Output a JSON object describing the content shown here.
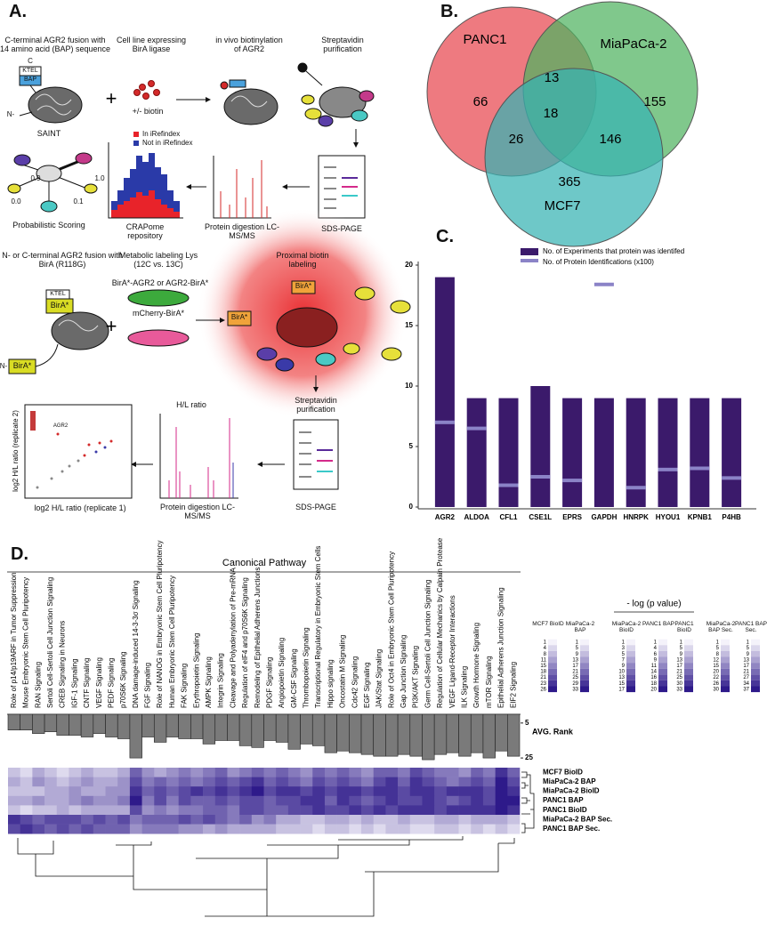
{
  "panel_a": {
    "label": "A.",
    "fusion_bap": "C-terminal AGR2 fusion with 14 amino acid (BAP) sequence",
    "cell_line": "Cell line expressing BirA ligase",
    "in_vivo": "in vivo biotinylation of AGR2",
    "strep_1": "Streptavidin purification",
    "biotin": "+/- biotin",
    "c_term": "C",
    "ktel": "KTEL",
    "bap": "BAP",
    "n_term": "N-",
    "saint": "SAINT",
    "scores": [
      "0.9",
      "1.0",
      "0.0",
      "0.1"
    ],
    "in_iref": "In iRefindex",
    "not_iref": "Not in iRefindex",
    "prob_scoring": "Probabilistic Scoring",
    "crapome": "CRAPome repository",
    "digestion_1": "Protein digestion LC-MS/MS",
    "sds_1": "SDS-PAGE",
    "fusion_bira": "N- or C-terminal AGR2 fusion with BirA (R118G)",
    "metabolic": "Metabolic labeling Lys (12C vs. 13C)",
    "proximal": "Proximal biotin labeling",
    "bira": "BirA*",
    "bira_agr2": "BirA*-AGR2 or AGR2-BirA*",
    "mcherry": "mCherry-BirA*",
    "strep_2": "Streptavidin purification",
    "hl_ratio": "H/L ratio",
    "digestion_2": "Protein digestion LC-MS/MS",
    "sds_2": "SDS-PAGE",
    "scatter_y": "log2 H/L ratio (replicate 2)",
    "scatter_x": "log2 H/L ratio (replicate 1)",
    "scatter_agr2": "AGR2"
  },
  "panel_b": {
    "label": "B.",
    "sets": [
      {
        "name": "PANC1",
        "color": "#e8474f"
      },
      {
        "name": "MiaPaCa-2",
        "color": "#4fb35f"
      },
      {
        "name": "MCF7",
        "color": "#36b3b3"
      }
    ],
    "region_counts": [
      66,
      13,
      155,
      18,
      26,
      146,
      365
    ]
  },
  "panel_c": {
    "label": "C.",
    "type": "bar",
    "categories": [
      "AGR2",
      "ALDOA",
      "CFL1",
      "CSE1L",
      "EPRS",
      "GAPDH",
      "HNRPK",
      "HYOU1",
      "KPNB1",
      "P4HB"
    ],
    "series": [
      {
        "name": "No. of Experiments that protein was identifed",
        "color": "#3b1a6b",
        "values": [
          19,
          9,
          9,
          10,
          9,
          9,
          9,
          9,
          9,
          9
        ]
      },
      {
        "name": "No. of Protein Identifications (x100)",
        "color": "#8b83c7",
        "values": [
          7,
          6.5,
          1.8,
          2.5,
          2.2,
          18.4,
          1.6,
          3.1,
          3.2,
          2.4
        ]
      }
    ],
    "ylim": [
      0,
      20
    ],
    "yticks": [
      0,
      5,
      10,
      15,
      20
    ]
  },
  "panel_d": {
    "label": "D.",
    "title": "Canonical Pathway",
    "pathways": [
      "Role of p14/p19ARF in Tumor Suppression",
      "Mouse Embryonic Stem Cell Pluripotency",
      "RAN Signaling",
      "Sertoli Cell-Sertoli Cell Junction Signaling",
      "CREB Signaling in Neurons",
      "IGF-1 Signaling",
      "CNTF Signaling",
      "VEGF Signaling",
      "PEDF Signaling",
      "p70S6K Signaling",
      "DNA damage-induced 14-3-3σ Signaling",
      "FGF Signaling",
      "Role of NANOG in Embryonic Stem Cell Pluripotency",
      "Human Embryonic Stem Cell Pluripotency",
      "FAK Signaling",
      "Erythropoietin Signaling",
      "AMPK Signaling",
      "Integrin Signaling",
      "Cleavage and Polyadenylation of Pre-mRNA",
      "Regulation of eIF4 and p70S6K Signaling",
      "Remodeling of Epithelial Adherens Junctions",
      "PDGF Signaling",
      "Angiopoietin Signaling",
      "GM-CSF Signaling",
      "Thrombopoietin Signaling",
      "Transcriptional Regulatory in Embryonic Stem Cells",
      "Hippo signaling",
      "Oncostatin M Signaling",
      "Cdc42 Signaling",
      "EGF Signaling",
      "JAK/Stat Signaling",
      "Role of Oct4 in Embryonic Stem Cell Pluripotency",
      "Gap Junction Signaling",
      "PI3K/AKT Signaling",
      "Germ Cell-Sertoli Cell Junction Signaling",
      "Regulation of Cellular Mechanics by Calpain Protease",
      "VEGF Ligand-Receptor Interactions",
      "ILK Signaling",
      "Growth Hormone Signaling",
      "mTOR Signaling",
      "Epithelial Adherens Junction Signaling",
      "EIF2 Signaling"
    ],
    "avg_rank": {
      "label": "AVG. Rank",
      "values": [
        9,
        9,
        11,
        10,
        12,
        12,
        13,
        11,
        13,
        14,
        25,
        13,
        16,
        13,
        14,
        14,
        17,
        15,
        15,
        18,
        19,
        15,
        16,
        20,
        17,
        18,
        22,
        21,
        22,
        23,
        24,
        24,
        23,
        24,
        26,
        23,
        22,
        24,
        22,
        25,
        21,
        24
      ],
      "ylim": [
        0,
        28
      ],
      "yticks": [
        5,
        25
      ]
    },
    "heatmap": {
      "rows": [
        "MCF7 BioID",
        "MiaPaCa-2 BAP",
        "MiaPaCa-2 BioID",
        "PANC1 BAP",
        "PANC1 BioID",
        "MiaPaCa-2 BAP Sec.",
        "PANC1 BAP Sec."
      ],
      "values": [
        [
          2,
          1,
          3,
          2,
          1,
          2,
          3,
          2,
          2,
          3,
          6,
          4,
          3,
          4,
          5,
          4,
          5,
          6,
          4,
          5,
          6,
          5,
          6,
          5,
          4,
          6,
          5,
          6,
          5,
          4,
          6,
          6,
          5,
          7,
          6,
          5,
          5,
          4,
          6,
          5,
          8,
          6
        ],
        [
          3,
          2,
          4,
          3,
          2,
          3,
          4,
          3,
          3,
          4,
          7,
          5,
          6,
          5,
          6,
          5,
          6,
          7,
          6,
          7,
          8,
          6,
          7,
          6,
          5,
          7,
          6,
          7,
          6,
          5,
          7,
          8,
          6,
          8,
          7,
          6,
          5,
          6,
          7,
          6,
          9,
          7
        ],
        [
          2,
          2,
          2,
          3,
          3,
          4,
          3,
          3,
          4,
          4,
          8,
          6,
          7,
          6,
          7,
          8,
          7,
          8,
          7,
          8,
          9,
          7,
          8,
          8,
          7,
          8,
          7,
          8,
          8,
          7,
          8,
          8,
          7,
          8,
          8,
          7,
          8,
          8,
          8,
          7,
          9,
          8
        ],
        [
          3,
          3,
          4,
          3,
          3,
          4,
          5,
          4,
          4,
          5,
          9,
          5,
          7,
          5,
          7,
          6,
          6,
          7,
          6,
          7,
          7,
          6,
          7,
          7,
          8,
          8,
          6,
          8,
          7,
          6,
          7,
          8,
          7,
          7,
          8,
          7,
          6,
          7,
          8,
          7,
          9,
          9
        ],
        [
          2,
          1,
          2,
          2,
          3,
          2,
          3,
          3,
          3,
          3,
          7,
          4,
          5,
          4,
          5,
          5,
          6,
          6,
          5,
          7,
          7,
          6,
          6,
          7,
          7,
          8,
          7,
          7,
          8,
          7,
          8,
          7,
          8,
          8,
          8,
          7,
          8,
          8,
          8,
          8,
          9,
          8
        ],
        [
          8,
          7,
          6,
          7,
          7,
          7,
          6,
          7,
          6,
          7,
          5,
          6,
          6,
          6,
          7,
          6,
          7,
          6,
          5,
          6,
          4,
          5,
          3,
          3,
          2,
          2,
          3,
          3,
          2,
          3,
          2,
          2,
          3,
          2,
          2,
          3,
          3,
          2,
          3,
          3,
          3,
          2
        ],
        [
          7,
          8,
          7,
          6,
          7,
          6,
          7,
          6,
          6,
          6,
          4,
          5,
          5,
          5,
          4,
          4,
          3,
          4,
          3,
          3,
          3,
          3,
          2,
          2,
          2,
          1,
          2,
          2,
          1,
          2,
          1,
          2,
          2,
          1,
          1,
          2,
          2,
          1,
          2,
          1,
          2,
          1
        ]
      ],
      "range": [
        0,
        9
      ]
    },
    "legend": {
      "title": "- log (p value)",
      "columns": [
        {
          "name": "MCF7 BioID",
          "levels": [
            1,
            4,
            8,
            11,
            15,
            18,
            21,
            23,
            26
          ]
        },
        {
          "name": "MiaPaCa-2 BAP",
          "levels": [
            1,
            5,
            9,
            13,
            17,
            21,
            25,
            29,
            33
          ]
        },
        {
          "name": "MiaPaCa-2 BioID",
          "levels": [
            1,
            3,
            5,
            7,
            9,
            10,
            13,
            15,
            17
          ]
        },
        {
          "name": "PANC1 BAP",
          "levels": [
            1,
            4,
            6,
            9,
            11,
            14,
            16,
            18,
            20
          ]
        },
        {
          "name": "PANC1 BioID",
          "levels": [
            1,
            5,
            9,
            13,
            17,
            21,
            25,
            30,
            33
          ]
        },
        {
          "name": "MiaPaCa-2 BAP Sec.",
          "levels": [
            1,
            5,
            8,
            12,
            15,
            20,
            22,
            26,
            30
          ]
        },
        {
          "name": "PANC1 BAP Sec.",
          "levels": [
            1,
            5,
            9,
            13,
            17,
            21,
            27,
            34,
            37
          ]
        }
      ]
    }
  }
}
